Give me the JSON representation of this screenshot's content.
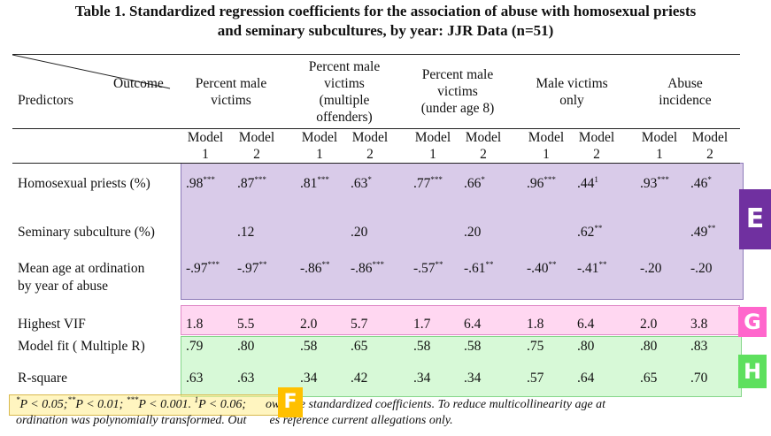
{
  "title": {
    "line1": "Table 1. Standardized regression coefficients for the association of abuse with homosexual priests",
    "line2": "and seminary subcultures, by year: JJR Data (n=51)"
  },
  "header": {
    "outcome_label": "Outcome",
    "predictors_label": "Predictors",
    "outcomes": [
      {
        "lines": [
          "Percent male",
          "victims"
        ]
      },
      {
        "lines": [
          "Percent male",
          "victims",
          "(multiple",
          "offenders)"
        ]
      },
      {
        "lines": [
          "Percent male",
          "victims",
          "(under age 8)"
        ]
      },
      {
        "lines": [
          "Male victims",
          "only"
        ]
      },
      {
        "lines": [
          "Abuse",
          "incidence"
        ]
      }
    ],
    "models": [
      {
        "word": "Model",
        "num": "1"
      },
      {
        "word": "Model",
        "num": "2"
      },
      {
        "word": "Model",
        "num": "1"
      },
      {
        "word": "Model",
        "num": "2"
      },
      {
        "word": "Model",
        "num": "1"
      },
      {
        "word": "Model",
        "num": "2"
      },
      {
        "word": "Model",
        "num": "1"
      },
      {
        "word": "Model",
        "num": "2"
      },
      {
        "word": "Model",
        "num": "1"
      },
      {
        "word": "Model",
        "num": "2"
      }
    ]
  },
  "rows": [
    {
      "label": [
        "Homosexual priests (%)"
      ],
      "cells": [
        [
          ".98",
          "***"
        ],
        [
          ".87",
          "***"
        ],
        [
          ".81",
          "***"
        ],
        [
          ".63",
          "*"
        ],
        [
          ".77",
          "***"
        ],
        [
          ".66",
          "*"
        ],
        [
          ".96",
          "***"
        ],
        [
          ".44",
          "1"
        ],
        [
          ".93",
          "***"
        ],
        [
          ".46",
          "*"
        ]
      ]
    },
    {
      "label": [
        "Seminary subculture (%)"
      ],
      "cells": [
        [
          "",
          ""
        ],
        [
          ".12",
          ""
        ],
        [
          "",
          ""
        ],
        [
          ".20",
          ""
        ],
        [
          "",
          ""
        ],
        [
          ".20",
          ""
        ],
        [
          "",
          ""
        ],
        [
          ".62",
          "**"
        ],
        [
          "",
          ""
        ],
        [
          ".49",
          "**"
        ]
      ]
    },
    {
      "label": [
        "Mean age at ordination",
        "by year of abuse"
      ],
      "cells": [
        [
          "-.97",
          "***"
        ],
        [
          "-.97",
          "**"
        ],
        [
          "-.86",
          "**"
        ],
        [
          "-.86",
          "***"
        ],
        [
          "-.57",
          "**"
        ],
        [
          "-.61",
          "**"
        ],
        [
          "-.40",
          "**"
        ],
        [
          "-.41",
          "**"
        ],
        [
          "-.20",
          ""
        ],
        [
          "-.20",
          ""
        ]
      ]
    },
    {
      "label": [
        "Highest VIF"
      ],
      "cells": [
        [
          "1.8",
          ""
        ],
        [
          "5.5",
          ""
        ],
        [
          "2.0",
          ""
        ],
        [
          "5.7",
          ""
        ],
        [
          "1.7",
          ""
        ],
        [
          "6.4",
          ""
        ],
        [
          "1.8",
          ""
        ],
        [
          "6.4",
          ""
        ],
        [
          "2.0",
          ""
        ],
        [
          "3.8",
          ""
        ]
      ]
    },
    {
      "label": [
        "Model fit ( Multiple R)"
      ],
      "cells": [
        [
          ".79",
          ""
        ],
        [
          ".80",
          ""
        ],
        [
          ".58",
          ""
        ],
        [
          ".65",
          ""
        ],
        [
          ".58",
          ""
        ],
        [
          ".58",
          ""
        ],
        [
          ".75",
          ""
        ],
        [
          ".80",
          ""
        ],
        [
          ".80",
          ""
        ],
        [
          ".83",
          ""
        ]
      ]
    },
    {
      "label": [
        "R-square"
      ],
      "cells": [
        [
          ".63",
          ""
        ],
        [
          ".63",
          ""
        ],
        [
          ".34",
          ""
        ],
        [
          ".42",
          ""
        ],
        [
          ".34",
          ""
        ],
        [
          ".34",
          ""
        ],
        [
          ".57",
          ""
        ],
        [
          ".64",
          ""
        ],
        [
          ".65",
          ""
        ],
        [
          ".70",
          ""
        ]
      ]
    }
  ],
  "footnote": {
    "line1_a": "P < 0.05;",
    "line1_b": "P < 0.01;",
    "line1_c": "P < 0.001.",
    "line1_d": "P < 0.06;",
    "line1_e": "own are standardized coefficients.  To reduce multicollinearity age at",
    "line2": "ordination was polynomially transformed.  Out",
    "line2_b": "es reference current allegations only.",
    "sup_a": "*",
    "sup_b": "**",
    "sup_c": "***",
    "sup_d": "1"
  },
  "tags": {
    "e": "E",
    "g": "G",
    "h": "H",
    "f": "F"
  },
  "colors": {
    "e_tag": "#7030a0",
    "g_tag": "#ff66cc",
    "h_tag": "#5ee05e",
    "f_tag": "#ffc000"
  }
}
